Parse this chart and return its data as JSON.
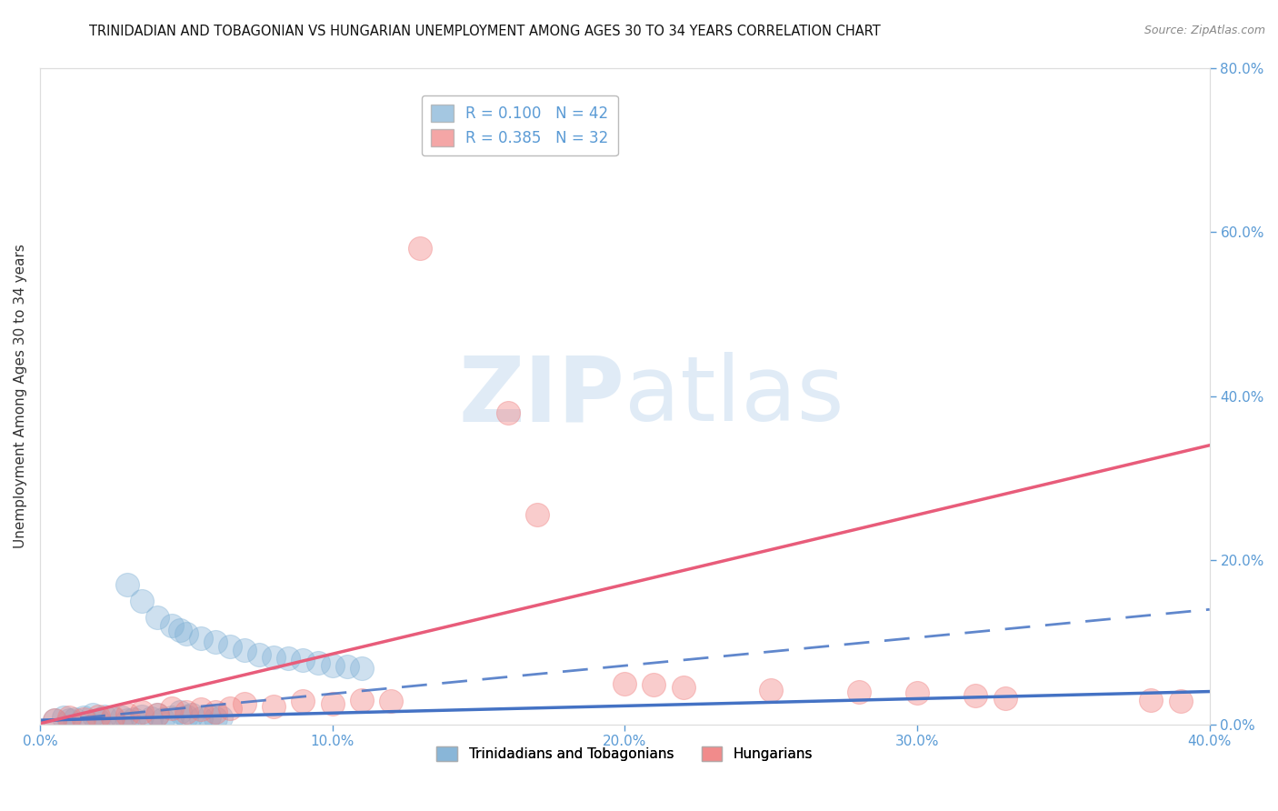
{
  "title": "TRINIDADIAN AND TOBAGONIAN VS HUNGARIAN UNEMPLOYMENT AMONG AGES 30 TO 34 YEARS CORRELATION CHART",
  "source": "Source: ZipAtlas.com",
  "ylabel": "Unemployment Among Ages 30 to 34 years",
  "xlim": [
    0.0,
    0.4
  ],
  "ylim": [
    0.0,
    0.8
  ],
  "yticks": [
    0.0,
    0.2,
    0.4,
    0.6,
    0.8
  ],
  "xticks": [
    0.0,
    0.1,
    0.2,
    0.3,
    0.4
  ],
  "blue_color": "#7EB0D5",
  "pink_color": "#F08080",
  "blue_line_color": "#4472C4",
  "pink_line_color": "#E85C7A",
  "blue_R": 0.1,
  "blue_N": 42,
  "pink_R": 0.385,
  "pink_N": 32,
  "legend_label_blue": "Trinidadians and Tobagonians",
  "legend_label_pink": "Hungarians",
  "blue_scatter": [
    [
      0.005,
      0.005
    ],
    [
      0.008,
      0.008
    ],
    [
      0.01,
      0.005
    ],
    [
      0.012,
      0.006
    ],
    [
      0.015,
      0.008
    ],
    [
      0.018,
      0.012
    ],
    [
      0.02,
      0.005
    ],
    [
      0.022,
      0.01
    ],
    [
      0.025,
      0.007
    ],
    [
      0.028,
      0.008
    ],
    [
      0.03,
      0.005
    ],
    [
      0.032,
      0.006
    ],
    [
      0.035,
      0.01
    ],
    [
      0.038,
      0.007
    ],
    [
      0.04,
      0.012
    ],
    [
      0.042,
      0.006
    ],
    [
      0.045,
      0.008
    ],
    [
      0.048,
      0.015
    ],
    [
      0.05,
      0.01
    ],
    [
      0.052,
      0.012
    ],
    [
      0.055,
      0.007
    ],
    [
      0.058,
      0.01
    ],
    [
      0.06,
      0.007
    ],
    [
      0.062,
      0.008
    ],
    [
      0.03,
      0.17
    ],
    [
      0.035,
      0.15
    ],
    [
      0.04,
      0.13
    ],
    [
      0.045,
      0.12
    ],
    [
      0.048,
      0.115
    ],
    [
      0.05,
      0.11
    ],
    [
      0.055,
      0.105
    ],
    [
      0.06,
      0.1
    ],
    [
      0.065,
      0.095
    ],
    [
      0.07,
      0.09
    ],
    [
      0.075,
      0.085
    ],
    [
      0.08,
      0.082
    ],
    [
      0.085,
      0.08
    ],
    [
      0.09,
      0.078
    ],
    [
      0.095,
      0.075
    ],
    [
      0.1,
      0.072
    ],
    [
      0.105,
      0.07
    ],
    [
      0.11,
      0.068
    ]
  ],
  "pink_scatter": [
    [
      0.005,
      0.005
    ],
    [
      0.01,
      0.008
    ],
    [
      0.015,
      0.006
    ],
    [
      0.02,
      0.01
    ],
    [
      0.025,
      0.008
    ],
    [
      0.03,
      0.012
    ],
    [
      0.035,
      0.015
    ],
    [
      0.04,
      0.012
    ],
    [
      0.045,
      0.02
    ],
    [
      0.05,
      0.015
    ],
    [
      0.055,
      0.018
    ],
    [
      0.06,
      0.015
    ],
    [
      0.065,
      0.02
    ],
    [
      0.07,
      0.025
    ],
    [
      0.08,
      0.022
    ],
    [
      0.09,
      0.028
    ],
    [
      0.1,
      0.025
    ],
    [
      0.11,
      0.03
    ],
    [
      0.12,
      0.028
    ],
    [
      0.13,
      0.58
    ],
    [
      0.16,
      0.38
    ],
    [
      0.17,
      0.255
    ],
    [
      0.2,
      0.05
    ],
    [
      0.21,
      0.048
    ],
    [
      0.22,
      0.045
    ],
    [
      0.25,
      0.042
    ],
    [
      0.28,
      0.04
    ],
    [
      0.3,
      0.038
    ],
    [
      0.32,
      0.035
    ],
    [
      0.33,
      0.032
    ],
    [
      0.38,
      0.03
    ],
    [
      0.39,
      0.028
    ]
  ],
  "blue_trend": [
    0.0,
    0.005,
    0.4,
    0.04
  ],
  "blue_dash_trend": [
    0.0,
    0.003,
    0.4,
    0.14
  ],
  "pink_trend": [
    0.0,
    0.001,
    0.4,
    0.34
  ],
  "title_fontsize": 10.5,
  "axis_label_fontsize": 11,
  "tick_label_color": "#5B9BD5",
  "tick_label_fontsize": 11,
  "grid_color": "#D0D0D0",
  "spine_color": "#DDDDDD"
}
